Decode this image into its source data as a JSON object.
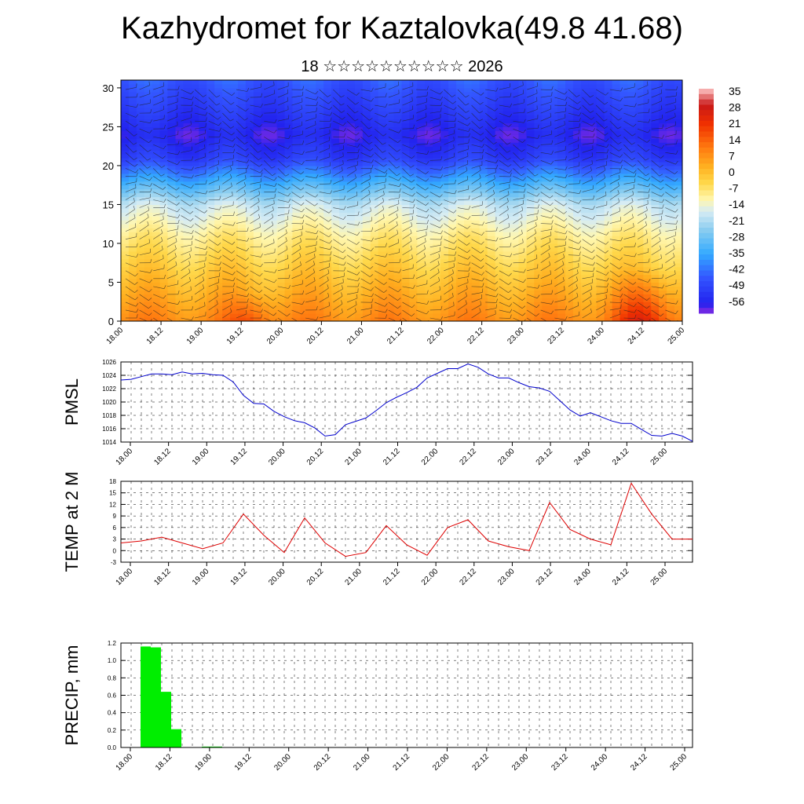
{
  "header": {
    "title": "Kazhydromet for Kaztalovka(49.8 41.68)",
    "subtitle": "18 ☆☆☆☆☆☆☆☆☆☆ 2026"
  },
  "chart_data": [
    {
      "type": "heatmap",
      "name": "cross-section",
      "x_tick_labels": [
        "18.00",
        "18.12",
        "19.00",
        "19.12",
        "20.00",
        "20.12",
        "21.00",
        "21.12",
        "22.00",
        "22.12",
        "23.00",
        "23.12",
        "24.00",
        "24.12",
        "25.00"
      ],
      "y_ticks": [
        0,
        5,
        10,
        15,
        20,
        25,
        30
      ],
      "ylim": [
        0,
        31
      ],
      "colorbar_labels": [
        35,
        28,
        21,
        14,
        7,
        0,
        -7,
        -14,
        -21,
        -28,
        -35,
        -42,
        -49,
        -56
      ],
      "colormap_stops": [
        {
          "value": -60,
          "color": "#8a2be2"
        },
        {
          "value": -56,
          "color": "#2222ee"
        },
        {
          "value": -45,
          "color": "#3355ff"
        },
        {
          "value": -35,
          "color": "#33aaff"
        },
        {
          "value": -25,
          "color": "#88ccf0"
        },
        {
          "value": -17,
          "color": "#d6ecf4"
        },
        {
          "value": -12,
          "color": "#fff7b0"
        },
        {
          "value": -5,
          "color": "#ffd84a"
        },
        {
          "value": 2,
          "color": "#ffb020"
        },
        {
          "value": 10,
          "color": "#ff7a10"
        },
        {
          "value": 20,
          "color": "#f03000"
        },
        {
          "value": 28,
          "color": "#c81818"
        },
        {
          "value": 35,
          "color": "#ffc8c8"
        }
      ],
      "description_values": "Temperature decreasing from about +8 at the surface to about -56 near 23-25 km, warmer toward -50 at 30 km"
    },
    {
      "type": "line",
      "name": "PMSL",
      "ylabel": "PMSL",
      "ylim": [
        1014,
        1026
      ],
      "y_ticks": [
        1014,
        1016,
        1018,
        1020,
        1022,
        1024,
        1026
      ],
      "x_tick_labels": [
        "18.00",
        "18.12",
        "19.00",
        "19.12",
        "20.00",
        "20.12",
        "21.00",
        "21.12",
        "22.00",
        "22.12",
        "23.00",
        "23.12",
        "24.00",
        "24.12",
        "25.00"
      ],
      "color": "#0000cc",
      "x": [
        0,
        1,
        2,
        3,
        4,
        5,
        6,
        7,
        8,
        9,
        10,
        11,
        12,
        13,
        14,
        15,
        16,
        17,
        18,
        19,
        20,
        21,
        22,
        23,
        24,
        25,
        26,
        27,
        28,
        29,
        30,
        31,
        32,
        33,
        34,
        35,
        36,
        37,
        38,
        39,
        40,
        41,
        42,
        43,
        44,
        45,
        46,
        47,
        48,
        49,
        50,
        51,
        52,
        53,
        54,
        55,
        56
      ],
      "values": [
        1023.3,
        1023.4,
        1023.8,
        1024.2,
        1024.2,
        1024.1,
        1024.5,
        1024.2,
        1024.3,
        1024.1,
        1024.0,
        1023.0,
        1021.0,
        1019.8,
        1019.7,
        1018.6,
        1017.8,
        1017.2,
        1016.9,
        1016.1,
        1014.9,
        1015.1,
        1016.6,
        1017.1,
        1017.6,
        1018.7,
        1019.9,
        1020.7,
        1021.4,
        1022.2,
        1023.6,
        1024.3,
        1025.0,
        1025.0,
        1025.7,
        1025.2,
        1024.2,
        1023.6,
        1023.6,
        1022.9,
        1022.3,
        1022.1,
        1021.6,
        1020.2,
        1018.8,
        1017.9,
        1018.4,
        1017.8,
        1017.2,
        1016.8,
        1016.8,
        1015.9,
        1015.0,
        1014.9,
        1015.3,
        1014.9,
        1014.1
      ]
    },
    {
      "type": "line",
      "name": "TEMP at 2 M",
      "ylabel": "TEMP at 2 M",
      "ylim": [
        -3,
        18
      ],
      "y_ticks": [
        -3,
        0,
        3,
        6,
        9,
        12,
        15,
        18
      ],
      "x_tick_labels": [
        "18.00",
        "18.12",
        "19.00",
        "19.12",
        "20.00",
        "20.12",
        "21.00",
        "21.12",
        "22.00",
        "22.12",
        "23.00",
        "23.12",
        "24.00",
        "24.12",
        "25.00"
      ],
      "color": "#dd0000",
      "x": [
        0,
        2,
        4,
        6,
        8,
        10,
        12,
        14,
        16,
        18,
        20,
        22,
        24,
        26,
        28,
        30,
        32,
        34,
        36,
        38,
        40,
        42,
        44,
        46,
        48,
        50,
        52,
        54,
        56
      ],
      "values": [
        2.0,
        2.5,
        3.5,
        2.0,
        0.5,
        2.0,
        9.5,
        4.0,
        -0.5,
        8.5,
        2.0,
        -1.5,
        -0.5,
        6.5,
        1.5,
        -1.2,
        6.0,
        8.0,
        2.5,
        1.0,
        0.0,
        12.5,
        5.5,
        3.0,
        1.5,
        17.5,
        9.5,
        3.0,
        3.0
      ]
    },
    {
      "type": "bar",
      "name": "PRECIP, mm",
      "ylabel": "PRECIP, mm",
      "ylim": [
        0,
        1.2
      ],
      "y_ticks": [
        "0.0",
        "0.2",
        "0.4",
        "0.6",
        "0.8",
        "1.0",
        "1.2"
      ],
      "x_tick_labels": [
        "18.00",
        "18.12",
        "19.00",
        "19.12",
        "20.00",
        "20.12",
        "21.00",
        "21.12",
        "22.00",
        "22.12",
        "23.00",
        "23.12",
        "24.00",
        "24.12",
        "25.00"
      ],
      "color": "#00ee00",
      "bars": [
        {
          "x": 2,
          "value": 1.16
        },
        {
          "x": 3,
          "value": 1.15
        },
        {
          "x": 4,
          "value": 0.64
        },
        {
          "x": 5,
          "value": 0.21
        },
        {
          "x": 8,
          "value": 0.01
        },
        {
          "x": 9,
          "value": 0.01
        }
      ]
    }
  ]
}
